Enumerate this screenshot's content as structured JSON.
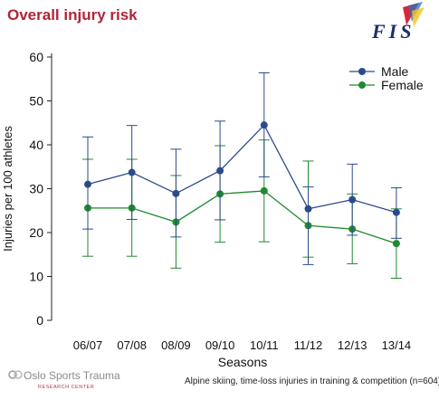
{
  "title": "Overall injury risk",
  "logo_text": "FIS",
  "footer_brand": "Oslo Sports Trauma",
  "footer_sub": "RESEARCH CENTER",
  "footnote": "Alpine skiing, time-loss injuries in training & competition (n=604)",
  "chart_data": {
    "type": "line",
    "xlabel": "Seasons",
    "ylabel": "Injuries per 100 athletes",
    "ylim": [
      0,
      60
    ],
    "yticks": [
      0,
      10,
      20,
      30,
      40,
      50,
      60
    ],
    "categories": [
      "06/07",
      "07/08",
      "08/09",
      "09/10",
      "10/11",
      "11/12",
      "12/13",
      "13/14"
    ],
    "legend_position": "top-right",
    "grid": false,
    "series": [
      {
        "name": "Male",
        "color": "#2d4a8a",
        "values": [
          31.0,
          33.7,
          28.9,
          34.1,
          44.5,
          25.4,
          27.5,
          24.6
        ],
        "err_low": [
          20.8,
          23.0,
          19.0,
          22.9,
          32.7,
          12.7,
          19.4,
          18.7
        ],
        "err_high": [
          41.8,
          44.4,
          39.0,
          45.4,
          56.4,
          30.4,
          35.6,
          30.2
        ]
      },
      {
        "name": "Female",
        "color": "#1f8a2f",
        "values": [
          25.6,
          25.6,
          22.4,
          28.8,
          29.5,
          21.6,
          20.8,
          17.5
        ],
        "err_low": [
          14.6,
          14.6,
          11.9,
          17.8,
          17.9,
          14.4,
          12.9,
          9.6
        ],
        "err_high": [
          36.7,
          36.7,
          33.0,
          39.8,
          41.1,
          36.3,
          28.8,
          25.4
        ]
      }
    ]
  }
}
